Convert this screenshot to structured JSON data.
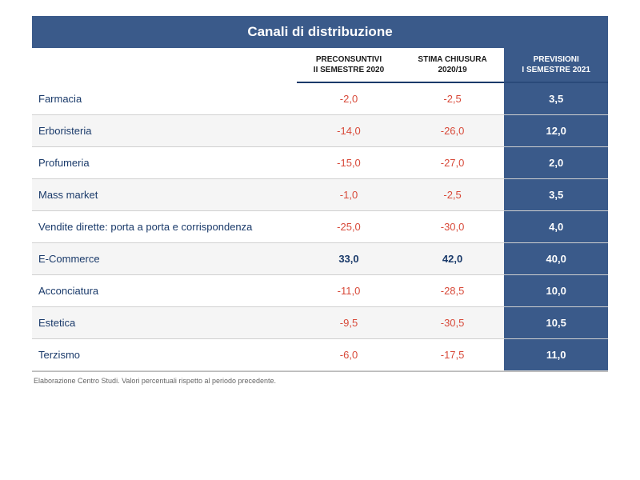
{
  "title": "Canali di distribuzione",
  "columns": {
    "col1_line1": "PRECONSUNTIVI",
    "col1_line2": "II SEMESTRE 2020",
    "col2_line1": "STIMA CHIUSURA",
    "col2_line2": "2020/19",
    "col3_line1": "PREVISIONI",
    "col3_line2": "I SEMESTRE 2021"
  },
  "rows": [
    {
      "label": "Farmacia",
      "v1": "-2,0",
      "v1_sign": "neg",
      "v2": "-2,5",
      "v2_sign": "neg",
      "v3": "3,5",
      "alt": false
    },
    {
      "label": "Erboristeria",
      "v1": "-14,0",
      "v1_sign": "neg",
      "v2": "-26,0",
      "v2_sign": "neg",
      "v3": "12,0",
      "alt": true
    },
    {
      "label": "Profumeria",
      "v1": "-15,0",
      "v1_sign": "neg",
      "v2": "-27,0",
      "v2_sign": "neg",
      "v3": "2,0",
      "alt": false
    },
    {
      "label": "Mass market",
      "v1": "-1,0",
      "v1_sign": "neg",
      "v2": "-2,5",
      "v2_sign": "neg",
      "v3": "3,5",
      "alt": true
    },
    {
      "label": "Vendite dirette: porta a porta e corrispondenza",
      "v1": "-25,0",
      "v1_sign": "neg",
      "v2": "-30,0",
      "v2_sign": "neg",
      "v3": "4,0",
      "alt": false
    },
    {
      "label": "E-Commerce",
      "v1": "33,0",
      "v1_sign": "pos",
      "v2": "42,0",
      "v2_sign": "pos",
      "v3": "40,0",
      "alt": true
    },
    {
      "label": "Acconciatura",
      "v1": "-11,0",
      "v1_sign": "neg",
      "v2": "-28,5",
      "v2_sign": "neg",
      "v3": "10,0",
      "alt": false
    },
    {
      "label": "Estetica",
      "v1": "-9,5",
      "v1_sign": "neg",
      "v2": "-30,5",
      "v2_sign": "neg",
      "v3": "10,5",
      "alt": true
    },
    {
      "label": "Terzismo",
      "v1": "-6,0",
      "v1_sign": "neg",
      "v2": "-17,5",
      "v2_sign": "neg",
      "v3": "11,0",
      "alt": false
    }
  ],
  "footer": "Elaborazione Centro Studi. Valori percentuali rispetto al periodo precedente.",
  "colors": {
    "header_bg": "#3a5a8a",
    "forecast_bg": "#3a5a8a",
    "neg_text": "#d84a3a",
    "pos_text": "#1a3a6a",
    "label_text": "#1a3a6a",
    "alt_row_bg": "#f5f5f5",
    "border_accent": "#1a3a6a"
  }
}
